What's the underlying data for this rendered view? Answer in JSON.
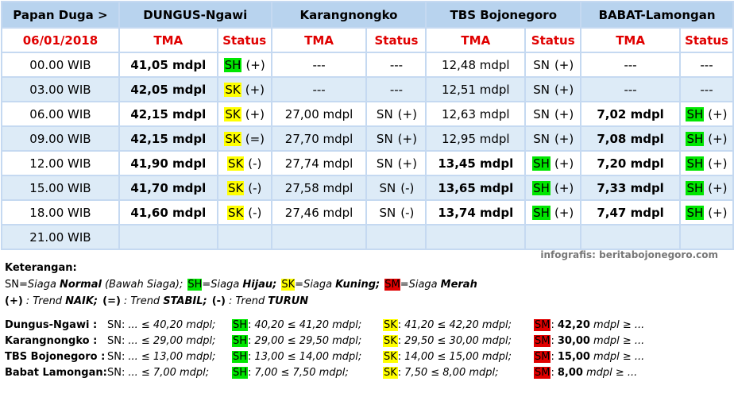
{
  "table": {
    "header": [
      "Papan Duga >",
      "DUNGUS-Ngawi",
      "Karangnongko",
      "TBS Bojonegoro",
      "BABAT-Lamongan"
    ],
    "subheader": [
      "06/01/2018",
      "TMA",
      "Status",
      "TMA",
      "Status",
      "TMA",
      "Status",
      "TMA",
      "Status"
    ],
    "rows": [
      {
        "time": "00.00 WIB",
        "cells": [
          {
            "text": "41,05 mdpl",
            "bold": true
          },
          {
            "code": "SH",
            "color": "#00e600",
            "trend": "(+)"
          },
          {
            "text": "---"
          },
          {
            "text": "---"
          },
          {
            "text": "12,48 mdpl"
          },
          {
            "code": "SN",
            "trend": "(+)"
          },
          {
            "text": "---"
          },
          {
            "text": "---"
          }
        ]
      },
      {
        "time": "03.00 WIB",
        "cells": [
          {
            "text": "42,05 mdpl",
            "bold": true
          },
          {
            "code": "SK",
            "color": "#ffff00",
            "trend": "(+)"
          },
          {
            "text": "---"
          },
          {
            "text": "---"
          },
          {
            "text": "12,51 mdpl"
          },
          {
            "code": "SN",
            "trend": "(+)"
          },
          {
            "text": "---"
          },
          {
            "text": "---"
          }
        ]
      },
      {
        "time": "06.00 WIB",
        "cells": [
          {
            "text": "42,15 mdpl",
            "bold": true
          },
          {
            "code": "SK",
            "color": "#ffff00",
            "trend": "(+)"
          },
          {
            "text": "27,00 mdpl"
          },
          {
            "code": "SN",
            "trend": "(+)"
          },
          {
            "text": "12,63 mdpl"
          },
          {
            "code": "SN",
            "trend": "(+)"
          },
          {
            "text": "7,02 mdpl",
            "bold": true
          },
          {
            "code": "SH",
            "color": "#00e600",
            "trend": "(+)"
          }
        ]
      },
      {
        "time": "09.00 WIB",
        "cells": [
          {
            "text": "42,15 mdpl",
            "bold": true
          },
          {
            "code": "SK",
            "color": "#ffff00",
            "trend": "(=)"
          },
          {
            "text": "27,70 mdpl"
          },
          {
            "code": "SN",
            "trend": "(+)"
          },
          {
            "text": "12,95 mdpl"
          },
          {
            "code": "SN",
            "trend": "(+)"
          },
          {
            "text": "7,08 mdpl",
            "bold": true
          },
          {
            "code": "SH",
            "color": "#00e600",
            "trend": "(+)"
          }
        ]
      },
      {
        "time": "12.00 WIB",
        "cells": [
          {
            "text": "41,90 mdpl",
            "bold": true
          },
          {
            "code": "SK",
            "color": "#ffff00",
            "trend": "(-)"
          },
          {
            "text": "27,74 mdpl"
          },
          {
            "code": "SN",
            "trend": "(+)"
          },
          {
            "text": "13,45 mdpl",
            "bold": true
          },
          {
            "code": "SH",
            "color": "#00e600",
            "trend": "(+)"
          },
          {
            "text": "7,20 mdpl",
            "bold": true
          },
          {
            "code": "SH",
            "color": "#00e600",
            "trend": "(+)"
          }
        ]
      },
      {
        "time": "15.00 WIB",
        "cells": [
          {
            "text": "41,70 mdpl",
            "bold": true
          },
          {
            "code": "SK",
            "color": "#ffff00",
            "trend": "(-)"
          },
          {
            "text": "27,58 mdpl"
          },
          {
            "code": "SN",
            "trend": "(-)"
          },
          {
            "text": "13,65 mdpl",
            "bold": true
          },
          {
            "code": "SH",
            "color": "#00e600",
            "trend": "(+)"
          },
          {
            "text": "7,33 mdpl",
            "bold": true
          },
          {
            "code": "SH",
            "color": "#00e600",
            "trend": "(+)"
          }
        ]
      },
      {
        "time": "18.00 WIB",
        "cells": [
          {
            "text": "41,60 mdpl",
            "bold": true
          },
          {
            "code": "SK",
            "color": "#ffff00",
            "trend": "(-)"
          },
          {
            "text": "27,46 mdpl"
          },
          {
            "code": "SN",
            "trend": "(-)"
          },
          {
            "text": "13,74 mdpl",
            "bold": true
          },
          {
            "code": "SH",
            "color": "#00e600",
            "trend": "(+)"
          },
          {
            "text": "7,47 mdpl",
            "bold": true
          },
          {
            "code": "SH",
            "color": "#00e600",
            "trend": "(+)"
          }
        ]
      },
      {
        "time": "21.00 WIB",
        "cells": []
      }
    ]
  },
  "credit": "infografis: beritabojonegoro.com",
  "legend": {
    "title": "Keterangan:",
    "codes": [
      {
        "code": "SN",
        "label": "=Siaga",
        "emph": "Normal",
        "note": "(Bawah Siaga);"
      },
      {
        "code": "SH",
        "color": "#00e600",
        "label": "=Siaga",
        "emph": "Hijau;"
      },
      {
        "code": "SK",
        "color": "#ffff00",
        "label": "=Siaga",
        "emph": "Kuning;"
      },
      {
        "code": "SM",
        "color": "#e00000",
        "label": "=Siaga",
        "emph": "Merah"
      }
    ],
    "trends": [
      {
        "symbol": "(+)",
        "label": ": Trend",
        "emph": "NAIK;"
      },
      {
        "symbol": "(=)",
        "label": ": Trend",
        "emph": "STABIL;"
      },
      {
        "symbol": "(-)",
        "label": ": Trend",
        "emph": "TURUN"
      }
    ]
  },
  "thresholds": [
    {
      "name": "Dungus-Ngawi :",
      "levels": [
        {
          "code": "SN",
          "sep": ":",
          "text": "... ≤ 40,20 mdpl;"
        },
        {
          "code": "SH",
          "color": "#00e600",
          "sep": ":",
          "text": "40,20 ≤ 41,20 mdpl;"
        },
        {
          "code": "SK",
          "color": "#ffff00",
          "sep": ":",
          "text": "41,20 ≤ 42,20 mdpl;"
        },
        {
          "code": "SM",
          "color": "#e00000",
          "sep": ":",
          "emph": "42,20",
          "text": "mdpl ≥ ..."
        }
      ]
    },
    {
      "name": "Karangnongko :",
      "levels": [
        {
          "code": "SN",
          "sep": ":",
          "text": "... ≤ 29,00 mdpl;"
        },
        {
          "code": "SH",
          "color": "#00e600",
          "sep": ":",
          "text": "29,00 ≤ 29,50 mdpl;"
        },
        {
          "code": "SK",
          "color": "#ffff00",
          "sep": ":",
          "text": "29,50 ≤ 30,00 mdpl;"
        },
        {
          "code": "SM",
          "color": "#e00000",
          "sep": ":",
          "emph": "30,00",
          "text": "mdpl ≥ ..."
        }
      ]
    },
    {
      "name": "TBS Bojonegoro :",
      "levels": [
        {
          "code": "SN",
          "sep": ":",
          "text": "... ≤ 13,00 mdpl;"
        },
        {
          "code": "SH",
          "color": "#00e600",
          "sep": ":",
          "text": "13,00 ≤ 14,00 mdpl;"
        },
        {
          "code": "SK",
          "color": "#ffff00",
          "sep": ":",
          "text": "14,00 ≤ 15,00 mdpl;"
        },
        {
          "code": "SM",
          "color": "#e00000",
          "sep": ":",
          "emph": "15,00",
          "text": "mdpl ≥ ..."
        }
      ]
    },
    {
      "name": "Babat Lamongan:",
      "levels": [
        {
          "code": "SN",
          "sep": ":",
          "text": "... ≤ 7,00 mdpl;"
        },
        {
          "code": "SH",
          "color": "#00e600",
          "sep": ":",
          "text": "7,00 ≤ 7,50 mdpl;"
        },
        {
          "code": "SK",
          "color": "#ffff00",
          "sep": ":",
          "text": "7,50 ≤ 8,00 mdpl;"
        },
        {
          "code": "SM",
          "color": "#e00000",
          "sep": ":",
          "emph": "8,00",
          "text": "mdpl ≥ ..."
        }
      ]
    }
  ]
}
